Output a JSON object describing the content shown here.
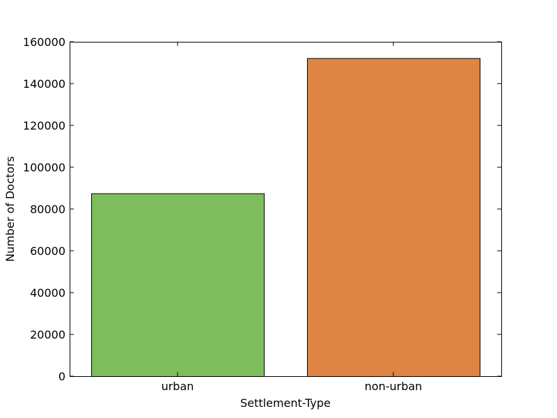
{
  "chart_data": {
    "type": "bar",
    "title": "",
    "xlabel": "Settlement-Type",
    "ylabel": "Number of Doctors",
    "categories": [
      "urban",
      "non-urban"
    ],
    "values": [
      87500,
      152200
    ],
    "colors": [
      "#7ebd5d",
      "#de8444"
    ],
    "ylim": [
      0,
      160000
    ],
    "yticks": [
      0,
      20000,
      40000,
      60000,
      80000,
      100000,
      120000,
      140000,
      160000
    ],
    "ytick_labels": [
      "0",
      "20000",
      "40000",
      "60000",
      "80000",
      "100000",
      "120000",
      "140000",
      "160000"
    ],
    "grid": false,
    "legend": "none"
  }
}
